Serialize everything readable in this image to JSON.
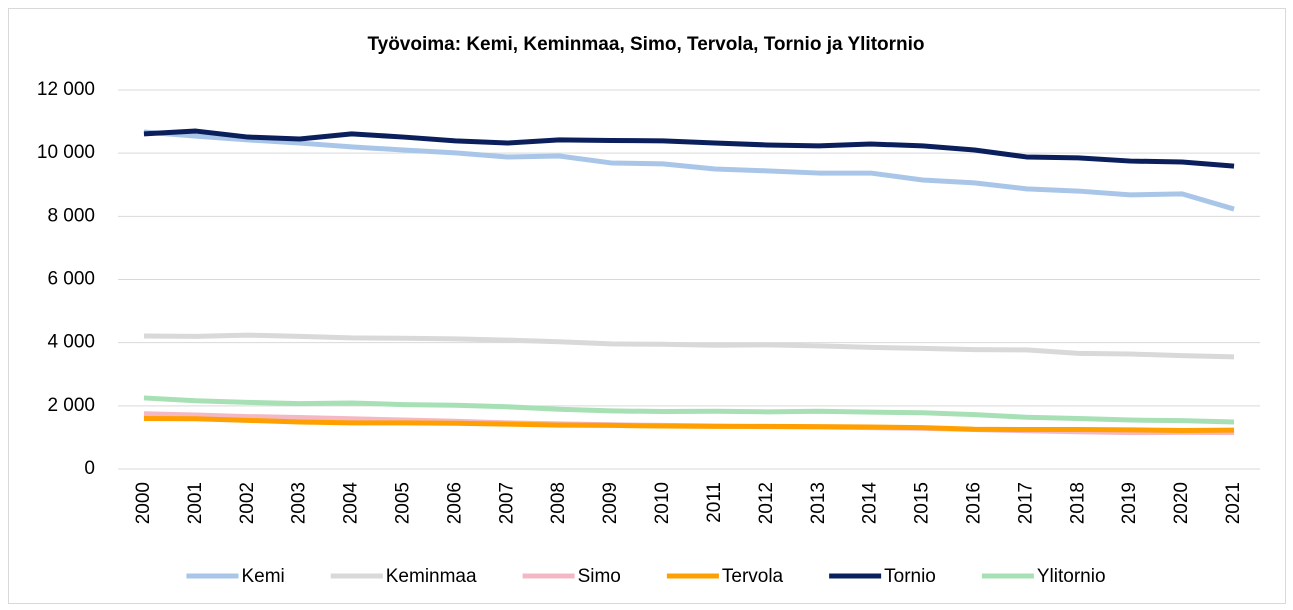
{
  "chart_data": {
    "type": "line",
    "title": "Työvoima: Kemi, Keminmaa, Simo, Tervola, Tornio ja Ylitornio",
    "categories": [
      "2000",
      "2001",
      "2002",
      "2003",
      "2004",
      "2005",
      "2006",
      "2007",
      "2008",
      "2009",
      "2010",
      "2011",
      "2012",
      "2013",
      "2014",
      "2015",
      "2016",
      "2017",
      "2018",
      "2019",
      "2020",
      "2021"
    ],
    "series": [
      {
        "name": "Kemi",
        "color": "#a9c6e8",
        "values": [
          10670,
          10540,
          10420,
          10320,
          10200,
          10100,
          10010,
          9880,
          9910,
          9690,
          9660,
          9500,
          9440,
          9370,
          9370,
          9150,
          9060,
          8870,
          8800,
          8680,
          8710,
          8230
        ]
      },
      {
        "name": "Keminmaa",
        "color": "#d9d9d9",
        "values": [
          4210,
          4200,
          4240,
          4200,
          4150,
          4140,
          4120,
          4080,
          4030,
          3960,
          3950,
          3920,
          3930,
          3900,
          3850,
          3820,
          3780,
          3770,
          3660,
          3640,
          3590,
          3550
        ]
      },
      {
        "name": "Simo",
        "color": "#f4b8c4",
        "values": [
          1750,
          1710,
          1660,
          1630,
          1590,
          1550,
          1510,
          1460,
          1430,
          1400,
          1380,
          1360,
          1340,
          1330,
          1310,
          1290,
          1250,
          1210,
          1180,
          1150,
          1160,
          1150
        ]
      },
      {
        "name": "Tervola",
        "color": "#ffa000",
        "values": [
          1600,
          1590,
          1540,
          1490,
          1460,
          1460,
          1450,
          1420,
          1390,
          1380,
          1360,
          1350,
          1350,
          1340,
          1330,
          1310,
          1260,
          1250,
          1250,
          1240,
          1220,
          1230
        ]
      },
      {
        "name": "Tornio",
        "color": "#0b1f5c",
        "values": [
          10610,
          10700,
          10510,
          10450,
          10610,
          10510,
          10390,
          10320,
          10420,
          10400,
          10390,
          10320,
          10260,
          10230,
          10290,
          10230,
          10100,
          9880,
          9850,
          9750,
          9720,
          9590
        ]
      },
      {
        "name": "Ylitornio",
        "color": "#a8e0b5",
        "values": [
          2250,
          2160,
          2110,
          2070,
          2090,
          2040,
          2020,
          1970,
          1890,
          1840,
          1820,
          1830,
          1810,
          1830,
          1800,
          1780,
          1720,
          1640,
          1600,
          1550,
          1530,
          1490
        ]
      }
    ],
    "ylim": [
      0,
      12000
    ],
    "yticks": [
      0,
      {
        "value": 2000,
        "label": "2 000"
      },
      {
        "value": 4000,
        "label": "4 000"
      },
      {
        "value": 6000,
        "label": "6 000"
      },
      {
        "value": 8000,
        "label": "8 000"
      },
      {
        "value": 10000,
        "label": "10 000"
      },
      {
        "value": 12000,
        "label": "12 000"
      }
    ],
    "grid": true,
    "legend": "bottom"
  }
}
